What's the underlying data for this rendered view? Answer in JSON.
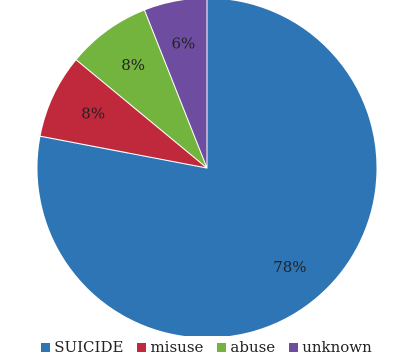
{
  "chart_data": {
    "type": "pie",
    "title": "",
    "slices": [
      {
        "label": "SUICIDE",
        "value": 78,
        "display": "78%",
        "color": "#2E75B6"
      },
      {
        "label": "misuse",
        "value": 8,
        "display": "8%",
        "color": "#C0283B"
      },
      {
        "label": "abuse",
        "value": 8,
        "display": "8%",
        "color": "#72B43D"
      },
      {
        "label": "unknown",
        "value": 6,
        "display": "6%",
        "color": "#6E4CA0"
      }
    ],
    "start_angle_deg": 0,
    "direction": "clockwise",
    "legend_position": "bottom"
  }
}
